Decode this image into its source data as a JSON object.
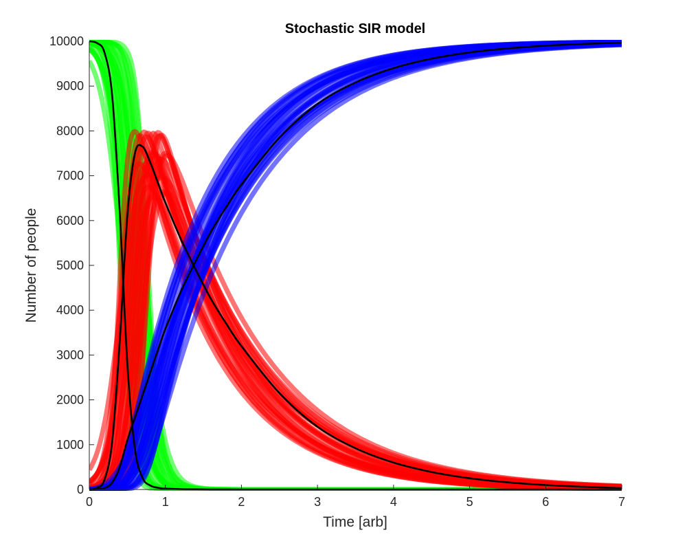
{
  "chart_data": {
    "type": "line",
    "title": "Stochastic SIR model",
    "xlabel": "Time [arb]",
    "ylabel": "Number of people",
    "xlim": [
      0,
      7
    ],
    "ylim": [
      0,
      10000
    ],
    "xticks": [
      0,
      1,
      2,
      3,
      4,
      5,
      6,
      7
    ],
    "yticks": [
      0,
      1000,
      2000,
      3000,
      4000,
      5000,
      6000,
      7000,
      8000,
      9000,
      10000
    ],
    "grid": false,
    "legend": "none",
    "colors": {
      "susceptible_runs": "#00ff00",
      "infected_runs": "#ff0000",
      "recovered_runs": "#0000ff",
      "mean_curves": "#000000"
    },
    "mean_curves": {
      "x": [
        0,
        0.1,
        0.2,
        0.3,
        0.4,
        0.5,
        0.6,
        0.7,
        0.8,
        0.9,
        1.0,
        1.2,
        1.4,
        1.6,
        1.8,
        2.0,
        2.5,
        3.0,
        3.5,
        4.0,
        4.5,
        5.0,
        5.5,
        6.0,
        6.5,
        7.0
      ],
      "series": [
        {
          "values": [
            10000,
            9960,
            9750,
            8800,
            6200,
            2800,
            900,
            260,
            90,
            40,
            20,
            8,
            4,
            2,
            1,
            0,
            0,
            0,
            0,
            0,
            0,
            0,
            0,
            0,
            0,
            0
          ]
        },
        {
          "values": [
            0,
            30,
            220,
            1050,
            3300,
            6100,
            7500,
            7650,
            7300,
            6850,
            6400,
            5600,
            4900,
            4250,
            3700,
            3200,
            2150,
            1400,
            920,
            600,
            390,
            250,
            160,
            100,
            60,
            30
          ]
        },
        {
          "values": [
            0,
            10,
            30,
            150,
            500,
            1100,
            1600,
            2100,
            2600,
            3100,
            3580,
            4400,
            5100,
            5750,
            6300,
            6800,
            7850,
            8600,
            9080,
            9400,
            9610,
            9750,
            9840,
            9900,
            9940,
            9970
          ]
        }
      ]
    },
    "stochastic_runs": {
      "count_per_compartment": 24,
      "susceptible_drop_time_range": [
        0.28,
        0.9
      ],
      "infected_peak_range": [
        7000,
        8100
      ],
      "description_of_spread": "Ensembles of stochastic trajectories spread around each mean curve"
    }
  }
}
